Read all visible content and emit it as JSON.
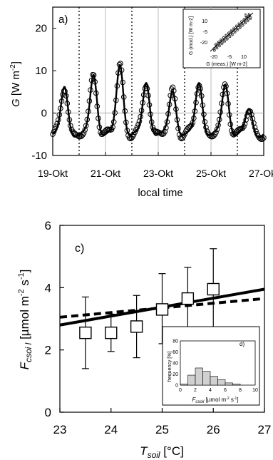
{
  "chart_data": [
    {
      "panel": "a)",
      "type": "scatter",
      "xlabel": "local time",
      "ylabel": "G [W m-2]",
      "xtick_labels": [
        "19-Okt",
        "21-Okt",
        "23-Okt",
        "25-Okt",
        "27-Okt"
      ],
      "xlim": [
        0,
        8
      ],
      "ylim": [
        -10,
        25
      ],
      "yticks": [
        -10,
        0,
        10,
        20
      ],
      "peaks": [
        {
          "day": 1,
          "t": 0.45,
          "v": 6.5
        },
        {
          "day": 2,
          "t": 0.55,
          "v": 10
        },
        {
          "day": 3,
          "t": 0.55,
          "v": 12.5
        },
        {
          "day": 4,
          "t": 0.55,
          "v": 8
        },
        {
          "day": 5,
          "t": 0.55,
          "v": 6
        },
        {
          "day": 6,
          "t": 0.55,
          "v": 8
        },
        {
          "day": 7,
          "t": 0.55,
          "v": 7.5
        },
        {
          "day": 8,
          "t": 0.45,
          "v": 1
        }
      ],
      "night_level": -5,
      "dotted_lines_x": [
        1,
        3,
        5,
        7
      ],
      "inset": {
        "label": "b)",
        "xlabel": "G (meas.)  [W m-2]",
        "ylabel": "G (mod.) [W m-2]",
        "xticks": [
          "-20",
          "-5",
          "10"
        ],
        "yticks": [
          "10",
          "-5",
          "-20"
        ]
      }
    },
    {
      "panel": "c)",
      "type": "scatter",
      "xlabel": "Tsoil [°C]",
      "ylabel": "Fcsoil [µmol m-2 s-1]",
      "xlim": [
        23,
        27
      ],
      "ylim": [
        0,
        6
      ],
      "xticks": [
        23,
        24,
        25,
        26,
        27
      ],
      "yticks": [
        0,
        2,
        4,
        6
      ],
      "points": [
        {
          "x": 23.5,
          "y": 2.55,
          "lo": 1.4,
          "hi": 3.7
        },
        {
          "x": 24.0,
          "y": 2.55,
          "lo": 1.95,
          "hi": 3.15
        },
        {
          "x": 24.5,
          "y": 2.75,
          "lo": 1.75,
          "hi": 3.75
        },
        {
          "x": 25.0,
          "y": 3.3,
          "lo": 2.2,
          "hi": 4.45
        },
        {
          "x": 25.5,
          "y": 3.65,
          "lo": 2.6,
          "hi": 4.65
        },
        {
          "x": 26.0,
          "y": 3.95,
          "lo": 2.6,
          "hi": 5.25
        }
      ],
      "solid_line": [
        [
          23,
          2.8
        ],
        [
          27,
          3.95
        ]
      ],
      "dashed_line": [
        [
          23,
          3.05
        ],
        [
          27,
          3.65
        ]
      ],
      "inset": {
        "label": "d)",
        "type": "bar",
        "xlabel": "Fcsoil [µmol m-2 s-1]",
        "ylabel": "frequency [%]",
        "xticks": [
          0,
          2,
          4,
          6,
          8,
          10
        ],
        "yticks": [
          0,
          20,
          40,
          60,
          80
        ],
        "bins": [
          0,
          1,
          2,
          3,
          4,
          5,
          6,
          7,
          8
        ],
        "values": [
          2,
          18,
          31,
          25,
          16,
          10,
          4,
          2
        ]
      }
    }
  ],
  "text": {
    "a_label": "a)",
    "a_ylabel_var": "G",
    "a_ylabel_unit": " [W m",
    "a_ylabel_exp": "-2",
    "a_ylabel_close": "]",
    "a_xlabel": "local time",
    "b_label": "b)",
    "b_xlabel": "G (meas.)  [W m-2]",
    "b_ylabel": "G (mod.) [W m-2]",
    "c_label": "c)",
    "c_ylabel_var": "F",
    "c_ylabel_sub": "csoi l",
    "c_ylabel_unit": " [µmol m",
    "c_ylabel_exp1": "-2",
    "c_ylabel_mid": " s",
    "c_ylabel_exp2": "-1",
    "c_ylabel_close": "]",
    "c_xlabel_var": "T",
    "c_xlabel_sub": "soil",
    "c_xlabel_unit": " [°C]",
    "d_label": "d)",
    "d_ylabel": "frequency [%]",
    "d_xlabel_var": "F",
    "d_xlabel_sub": "csoil",
    "d_xlabel_unit": " [µmol m",
    "d_xlabel_exp1": "-2",
    "d_xlabel_mid": " s",
    "d_xlabel_exp2": "-1",
    "d_xlabel_close": "]"
  }
}
